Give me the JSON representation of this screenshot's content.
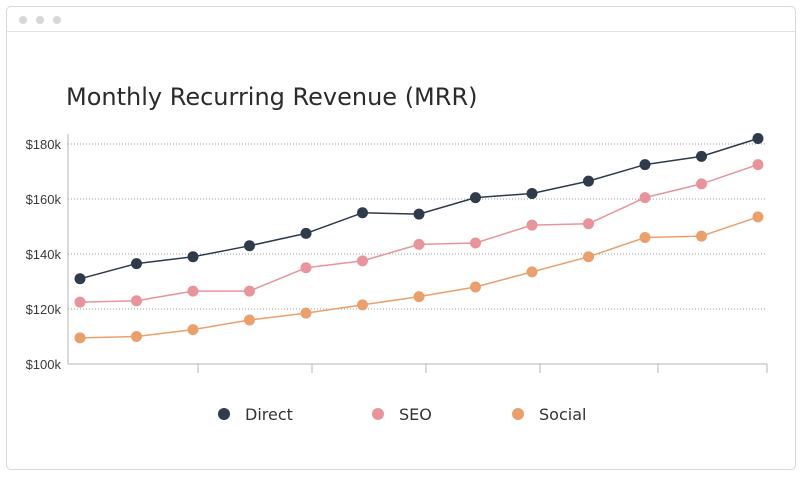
{
  "chart_data": {
    "type": "line",
    "title": "Monthly Recurring Revenue (MRR)",
    "xlabel": "",
    "ylabel": "",
    "ylim": [
      100000,
      180000
    ],
    "y_ticks": [
      {
        "value": 180000,
        "label": "$180k"
      },
      {
        "value": 160000,
        "label": "$160k"
      },
      {
        "value": 140000,
        "label": "$140k"
      },
      {
        "value": 120000,
        "label": "$120k"
      },
      {
        "value": 100000,
        "label": "$100k"
      }
    ],
    "x": [
      1,
      2,
      3,
      4,
      5,
      6,
      7,
      8,
      9,
      10,
      11,
      12,
      13
    ],
    "grid": "horizontal dotted",
    "legend": "bottom",
    "series": [
      {
        "name": "Direct",
        "color": "#2f3a4a",
        "values": [
          131000,
          136500,
          139000,
          143000,
          147500,
          155000,
          154500,
          160500,
          162000,
          166500,
          172500,
          175500,
          182000
        ]
      },
      {
        "name": "SEO",
        "color": "#e8949a",
        "values": [
          122500,
          123000,
          126500,
          126500,
          135000,
          137500,
          143500,
          144000,
          150500,
          151000,
          160500,
          165500,
          172500
        ]
      },
      {
        "name": "Social",
        "color": "#eba06c",
        "values": [
          109500,
          110000,
          112500,
          116000,
          118500,
          121500,
          124500,
          128000,
          133500,
          139000,
          146000,
          146500,
          153500
        ]
      }
    ]
  }
}
